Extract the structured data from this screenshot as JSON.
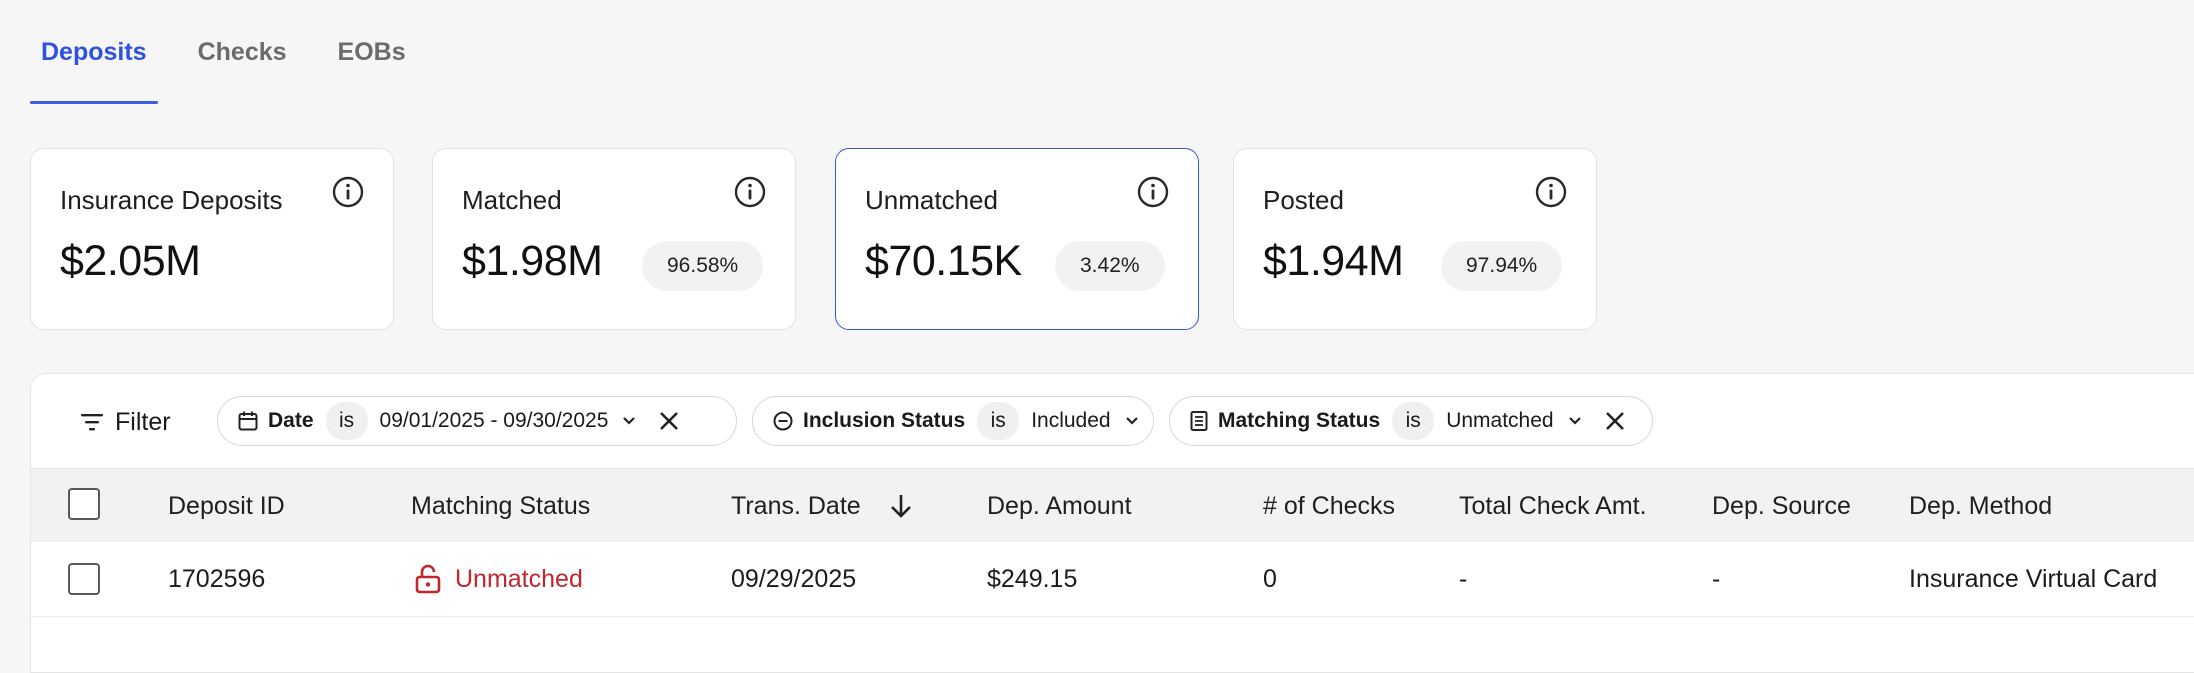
{
  "tabs": [
    {
      "label": "Deposits",
      "active": true
    },
    {
      "label": "Checks",
      "active": false
    },
    {
      "label": "EOBs",
      "active": false
    }
  ],
  "cards": [
    {
      "title": "Insurance Deposits",
      "value": "$2.05M",
      "badge": null,
      "selected": false
    },
    {
      "title": "Matched",
      "value": "$1.98M",
      "badge": "96.58%",
      "selected": false
    },
    {
      "title": "Unmatched",
      "value": "$70.15K",
      "badge": "3.42%",
      "selected": true
    },
    {
      "title": "Posted",
      "value": "$1.94M",
      "badge": "97.94%",
      "selected": false
    }
  ],
  "filter": {
    "button_label": "Filter",
    "chips": [
      {
        "field": "Date",
        "op": "is",
        "value": "09/01/2025 - 09/30/2025",
        "icon": "calendar-icon",
        "removable": true
      },
      {
        "field": "Inclusion Status",
        "op": "is",
        "value": "Included",
        "icon": "minus-circle-icon",
        "removable": false
      },
      {
        "field": "Matching Status",
        "op": "is",
        "value": "Unmatched",
        "icon": "document-icon",
        "removable": true
      }
    ]
  },
  "table": {
    "columns": [
      "Deposit ID",
      "Matching Status",
      "Trans. Date",
      "Dep. Amount",
      "# of Checks",
      "Total Check Amt.",
      "Dep. Source",
      "Dep. Method"
    ],
    "sort_column": "Trans. Date",
    "sort_direction": "desc",
    "rows": [
      {
        "deposit_id": "1702596",
        "matching_status": "Unmatched",
        "trans_date": "09/29/2025",
        "dep_amount": "$249.15",
        "num_checks": "0",
        "total_check_amt": "-",
        "dep_source": "-",
        "dep_method": "Insurance Virtual Card"
      }
    ]
  },
  "colors": {
    "accent": "#2f51e0",
    "unmatched": "#c0262d",
    "background": "#f6f6f6"
  }
}
